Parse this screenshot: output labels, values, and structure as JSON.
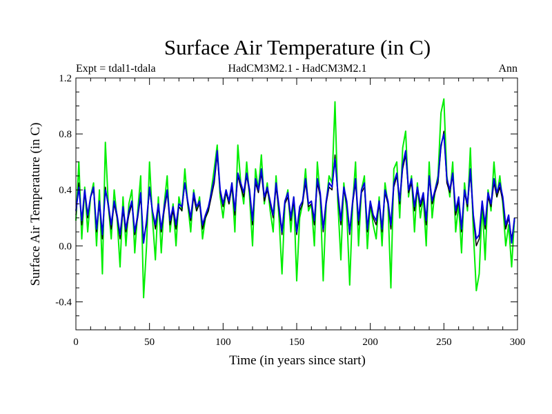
{
  "chart_data": {
    "type": "line",
    "title": "Surface Air Temperature (in C)",
    "subtitle_left": "Expt = tdal1-tdala",
    "subtitle_center": "HadCM3M2.1 - HadCM3M2.1",
    "subtitle_right": "Ann",
    "xlabel": "Time (in years since start)",
    "ylabel": "Surface Air Temperature (in C)",
    "xlim": [
      0,
      300
    ],
    "ylim": [
      -0.6,
      1.2
    ],
    "xticks": [
      0,
      50,
      100,
      150,
      200,
      250,
      300
    ],
    "xtick_labels": [
      "0",
      "50",
      "100",
      "150",
      "200",
      "250",
      "300"
    ],
    "yticks": [
      -0.4,
      0.0,
      0.4,
      0.8,
      1.2
    ],
    "ytick_labels": [
      "-0.4",
      "0.0",
      "0.4",
      "0.8",
      "1.2"
    ],
    "grid": false,
    "series": [
      {
        "name": "green",
        "color": "#00ee00",
        "width": 2,
        "x": [
          0,
          2,
          4,
          6,
          8,
          10,
          12,
          14,
          16,
          18,
          20,
          22,
          24,
          26,
          28,
          30,
          32,
          34,
          36,
          38,
          40,
          42,
          44,
          46,
          48,
          50,
          52,
          54,
          56,
          58,
          60,
          62,
          64,
          66,
          68,
          70,
          72,
          74,
          76,
          78,
          80,
          82,
          84,
          86,
          88,
          90,
          92,
          94,
          96,
          98,
          100,
          102,
          104,
          106,
          108,
          110,
          112,
          114,
          116,
          118,
          120,
          122,
          124,
          126,
          128,
          130,
          132,
          134,
          136,
          138,
          140,
          142,
          144,
          146,
          148,
          150,
          152,
          154,
          156,
          158,
          160,
          162,
          164,
          166,
          168,
          170,
          172,
          174,
          176,
          178,
          180,
          182,
          184,
          186,
          188,
          190,
          192,
          194,
          196,
          198,
          200,
          202,
          204,
          206,
          208,
          210,
          212,
          214,
          216,
          218,
          220,
          222,
          224,
          226,
          228,
          230,
          232,
          234,
          236,
          238,
          240,
          242,
          244,
          246,
          248,
          250,
          252,
          254,
          256,
          258,
          260,
          262,
          264,
          266,
          268,
          270,
          272,
          274,
          276,
          278,
          280,
          282,
          284,
          286,
          288,
          290,
          292,
          294,
          296,
          298
        ],
        "values": [
          0.18,
          0.6,
          0.05,
          0.42,
          0.1,
          0.35,
          0.45,
          0.0,
          0.4,
          -0.2,
          0.74,
          0.3,
          0.05,
          0.4,
          0.2,
          -0.15,
          0.35,
          0.0,
          0.3,
          0.4,
          -0.05,
          0.25,
          0.5,
          -0.37,
          0.0,
          0.6,
          0.2,
          -0.1,
          0.35,
          -0.05,
          0.3,
          0.5,
          0.1,
          0.3,
          0.0,
          0.35,
          0.25,
          0.55,
          0.3,
          0.1,
          0.4,
          0.25,
          0.35,
          0.05,
          0.2,
          0.25,
          0.4,
          0.55,
          0.72,
          0.35,
          0.2,
          0.4,
          0.3,
          0.45,
          0.1,
          0.72,
          0.45,
          0.3,
          0.6,
          0.35,
          0.0,
          0.55,
          0.4,
          0.65,
          0.3,
          0.45,
          0.25,
          0.1,
          0.5,
          0.2,
          -0.2,
          0.3,
          0.4,
          0.1,
          0.35,
          -0.25,
          0.2,
          0.3,
          0.55,
          0.25,
          0.3,
          0.0,
          0.6,
          0.35,
          -0.25,
          0.3,
          0.5,
          0.45,
          1.03,
          0.3,
          -0.1,
          0.45,
          0.25,
          -0.28,
          0.3,
          0.6,
          0.0,
          0.4,
          0.5,
          -0.02,
          0.3,
          0.15,
          0.05,
          0.35,
          0.0,
          0.45,
          0.3,
          -0.3,
          0.55,
          0.6,
          0.2,
          0.7,
          0.82,
          0.35,
          0.5,
          0.1,
          0.45,
          0.2,
          0.35,
          0.0,
          0.6,
          0.2,
          0.4,
          0.5,
          0.95,
          1.05,
          0.5,
          0.35,
          0.6,
          0.1,
          0.3,
          -0.05,
          0.45,
          0.25,
          0.7,
          0.1,
          -0.32,
          -0.2,
          0.3,
          -0.1,
          0.4,
          0.25,
          0.6,
          0.35,
          0.5,
          0.3,
          0.0,
          0.15,
          -0.15,
          0.2
        ]
      },
      {
        "name": "black",
        "color": "#000000",
        "width": 1.5,
        "x": [
          0,
          2,
          4,
          6,
          8,
          10,
          12,
          14,
          16,
          18,
          20,
          22,
          24,
          26,
          28,
          30,
          32,
          34,
          36,
          38,
          40,
          42,
          44,
          46,
          48,
          50,
          52,
          54,
          56,
          58,
          60,
          62,
          64,
          66,
          68,
          70,
          72,
          74,
          76,
          78,
          80,
          82,
          84,
          86,
          88,
          90,
          92,
          94,
          96,
          98,
          100,
          102,
          104,
          106,
          108,
          110,
          112,
          114,
          116,
          118,
          120,
          122,
          124,
          126,
          128,
          130,
          132,
          134,
          136,
          138,
          140,
          142,
          144,
          146,
          148,
          150,
          152,
          154,
          156,
          158,
          160,
          162,
          164,
          166,
          168,
          170,
          172,
          174,
          176,
          178,
          180,
          182,
          184,
          186,
          188,
          190,
          192,
          194,
          196,
          198,
          200,
          202,
          204,
          206,
          208,
          210,
          212,
          214,
          216,
          218,
          220,
          222,
          224,
          226,
          228,
          230,
          232,
          234,
          236,
          238,
          240,
          242,
          244,
          246,
          248,
          250,
          252,
          254,
          256,
          258,
          260,
          262,
          264,
          266,
          268,
          270,
          272,
          274,
          276,
          278,
          280,
          282,
          284,
          286,
          288,
          290,
          292,
          294,
          296,
          298
        ],
        "values": [
          0.22,
          0.45,
          0.15,
          0.38,
          0.2,
          0.35,
          0.4,
          0.1,
          0.3,
          0.05,
          0.42,
          0.28,
          0.12,
          0.3,
          0.2,
          0.05,
          0.25,
          0.1,
          0.22,
          0.3,
          0.08,
          0.2,
          0.35,
          0.05,
          0.15,
          0.4,
          0.25,
          0.12,
          0.28,
          0.1,
          0.25,
          0.38,
          0.15,
          0.25,
          0.12,
          0.28,
          0.25,
          0.45,
          0.3,
          0.18,
          0.35,
          0.25,
          0.3,
          0.12,
          0.2,
          0.25,
          0.35,
          0.45,
          0.65,
          0.38,
          0.28,
          0.38,
          0.3,
          0.42,
          0.22,
          0.5,
          0.42,
          0.35,
          0.5,
          0.38,
          0.15,
          0.45,
          0.38,
          0.52,
          0.32,
          0.4,
          0.3,
          0.2,
          0.42,
          0.25,
          0.08,
          0.3,
          0.35,
          0.18,
          0.32,
          0.08,
          0.25,
          0.3,
          0.45,
          0.28,
          0.3,
          0.15,
          0.45,
          0.35,
          0.1,
          0.3,
          0.42,
          0.4,
          0.65,
          0.35,
          0.15,
          0.4,
          0.3,
          0.08,
          0.3,
          0.45,
          0.15,
          0.38,
          0.42,
          0.1,
          0.3,
          0.2,
          0.15,
          0.3,
          0.1,
          0.38,
          0.3,
          0.12,
          0.42,
          0.5,
          0.3,
          0.55,
          0.65,
          0.38,
          0.45,
          0.25,
          0.4,
          0.28,
          0.35,
          0.15,
          0.48,
          0.3,
          0.38,
          0.45,
          0.7,
          0.82,
          0.45,
          0.38,
          0.5,
          0.22,
          0.32,
          0.1,
          0.38,
          0.28,
          0.52,
          0.2,
          0.0,
          0.05,
          0.3,
          0.12,
          0.35,
          0.28,
          0.45,
          0.35,
          0.42,
          0.32,
          0.12,
          0.2,
          0.05,
          0.18
        ]
      },
      {
        "name": "blue",
        "color": "#0000dd",
        "width": 2,
        "x": [
          0,
          2,
          4,
          6,
          8,
          10,
          12,
          14,
          16,
          18,
          20,
          22,
          24,
          26,
          28,
          30,
          32,
          34,
          36,
          38,
          40,
          42,
          44,
          46,
          48,
          50,
          52,
          54,
          56,
          58,
          60,
          62,
          64,
          66,
          68,
          70,
          72,
          74,
          76,
          78,
          80,
          82,
          84,
          86,
          88,
          90,
          92,
          94,
          96,
          98,
          100,
          102,
          104,
          106,
          108,
          110,
          112,
          114,
          116,
          118,
          120,
          122,
          124,
          126,
          128,
          130,
          132,
          134,
          136,
          138,
          140,
          142,
          144,
          146,
          148,
          150,
          152,
          154,
          156,
          158,
          160,
          162,
          164,
          166,
          168,
          170,
          172,
          174,
          176,
          178,
          180,
          182,
          184,
          186,
          188,
          190,
          192,
          194,
          196,
          198,
          200,
          202,
          204,
          206,
          208,
          210,
          212,
          214,
          216,
          218,
          220,
          222,
          224,
          226,
          228,
          230,
          232,
          234,
          236,
          238,
          240,
          242,
          244,
          246,
          248,
          250,
          252,
          254,
          256,
          258,
          260,
          262,
          264,
          266,
          268,
          270,
          272,
          274,
          276,
          278,
          280,
          282,
          284,
          286,
          288,
          290,
          292,
          294,
          296,
          298
        ],
        "values": [
          0.25,
          0.42,
          0.18,
          0.4,
          0.22,
          0.35,
          0.42,
          0.12,
          0.32,
          0.08,
          0.4,
          0.3,
          0.15,
          0.32,
          0.22,
          0.08,
          0.28,
          0.12,
          0.25,
          0.32,
          0.1,
          0.22,
          0.38,
          0.02,
          0.18,
          0.42,
          0.25,
          0.15,
          0.3,
          0.12,
          0.28,
          0.4,
          0.18,
          0.28,
          0.15,
          0.3,
          0.28,
          0.45,
          0.32,
          0.2,
          0.38,
          0.28,
          0.32,
          0.15,
          0.22,
          0.28,
          0.38,
          0.48,
          0.68,
          0.4,
          0.3,
          0.4,
          0.32,
          0.45,
          0.25,
          0.52,
          0.45,
          0.38,
          0.52,
          0.4,
          0.18,
          0.48,
          0.4,
          0.55,
          0.35,
          0.42,
          0.32,
          0.22,
          0.45,
          0.28,
          0.1,
          0.32,
          0.38,
          0.2,
          0.35,
          0.1,
          0.28,
          0.32,
          0.48,
          0.3,
          0.32,
          0.18,
          0.48,
          0.38,
          0.12,
          0.32,
          0.45,
          0.42,
          0.62,
          0.38,
          0.18,
          0.42,
          0.32,
          0.1,
          0.32,
          0.48,
          0.18,
          0.4,
          0.45,
          0.12,
          0.32,
          0.22,
          0.18,
          0.32,
          0.12,
          0.4,
          0.32,
          0.15,
          0.45,
          0.52,
          0.32,
          0.58,
          0.68,
          0.4,
          0.48,
          0.28,
          0.42,
          0.3,
          0.38,
          0.18,
          0.5,
          0.32,
          0.4,
          0.48,
          0.72,
          0.8,
          0.48,
          0.4,
          0.52,
          0.25,
          0.35,
          0.12,
          0.4,
          0.3,
          0.55,
          0.22,
          0.05,
          0.08,
          0.32,
          0.15,
          0.38,
          0.3,
          0.48,
          0.38,
          0.45,
          0.35,
          0.15,
          0.22,
          0.02,
          0.2
        ]
      }
    ]
  }
}
